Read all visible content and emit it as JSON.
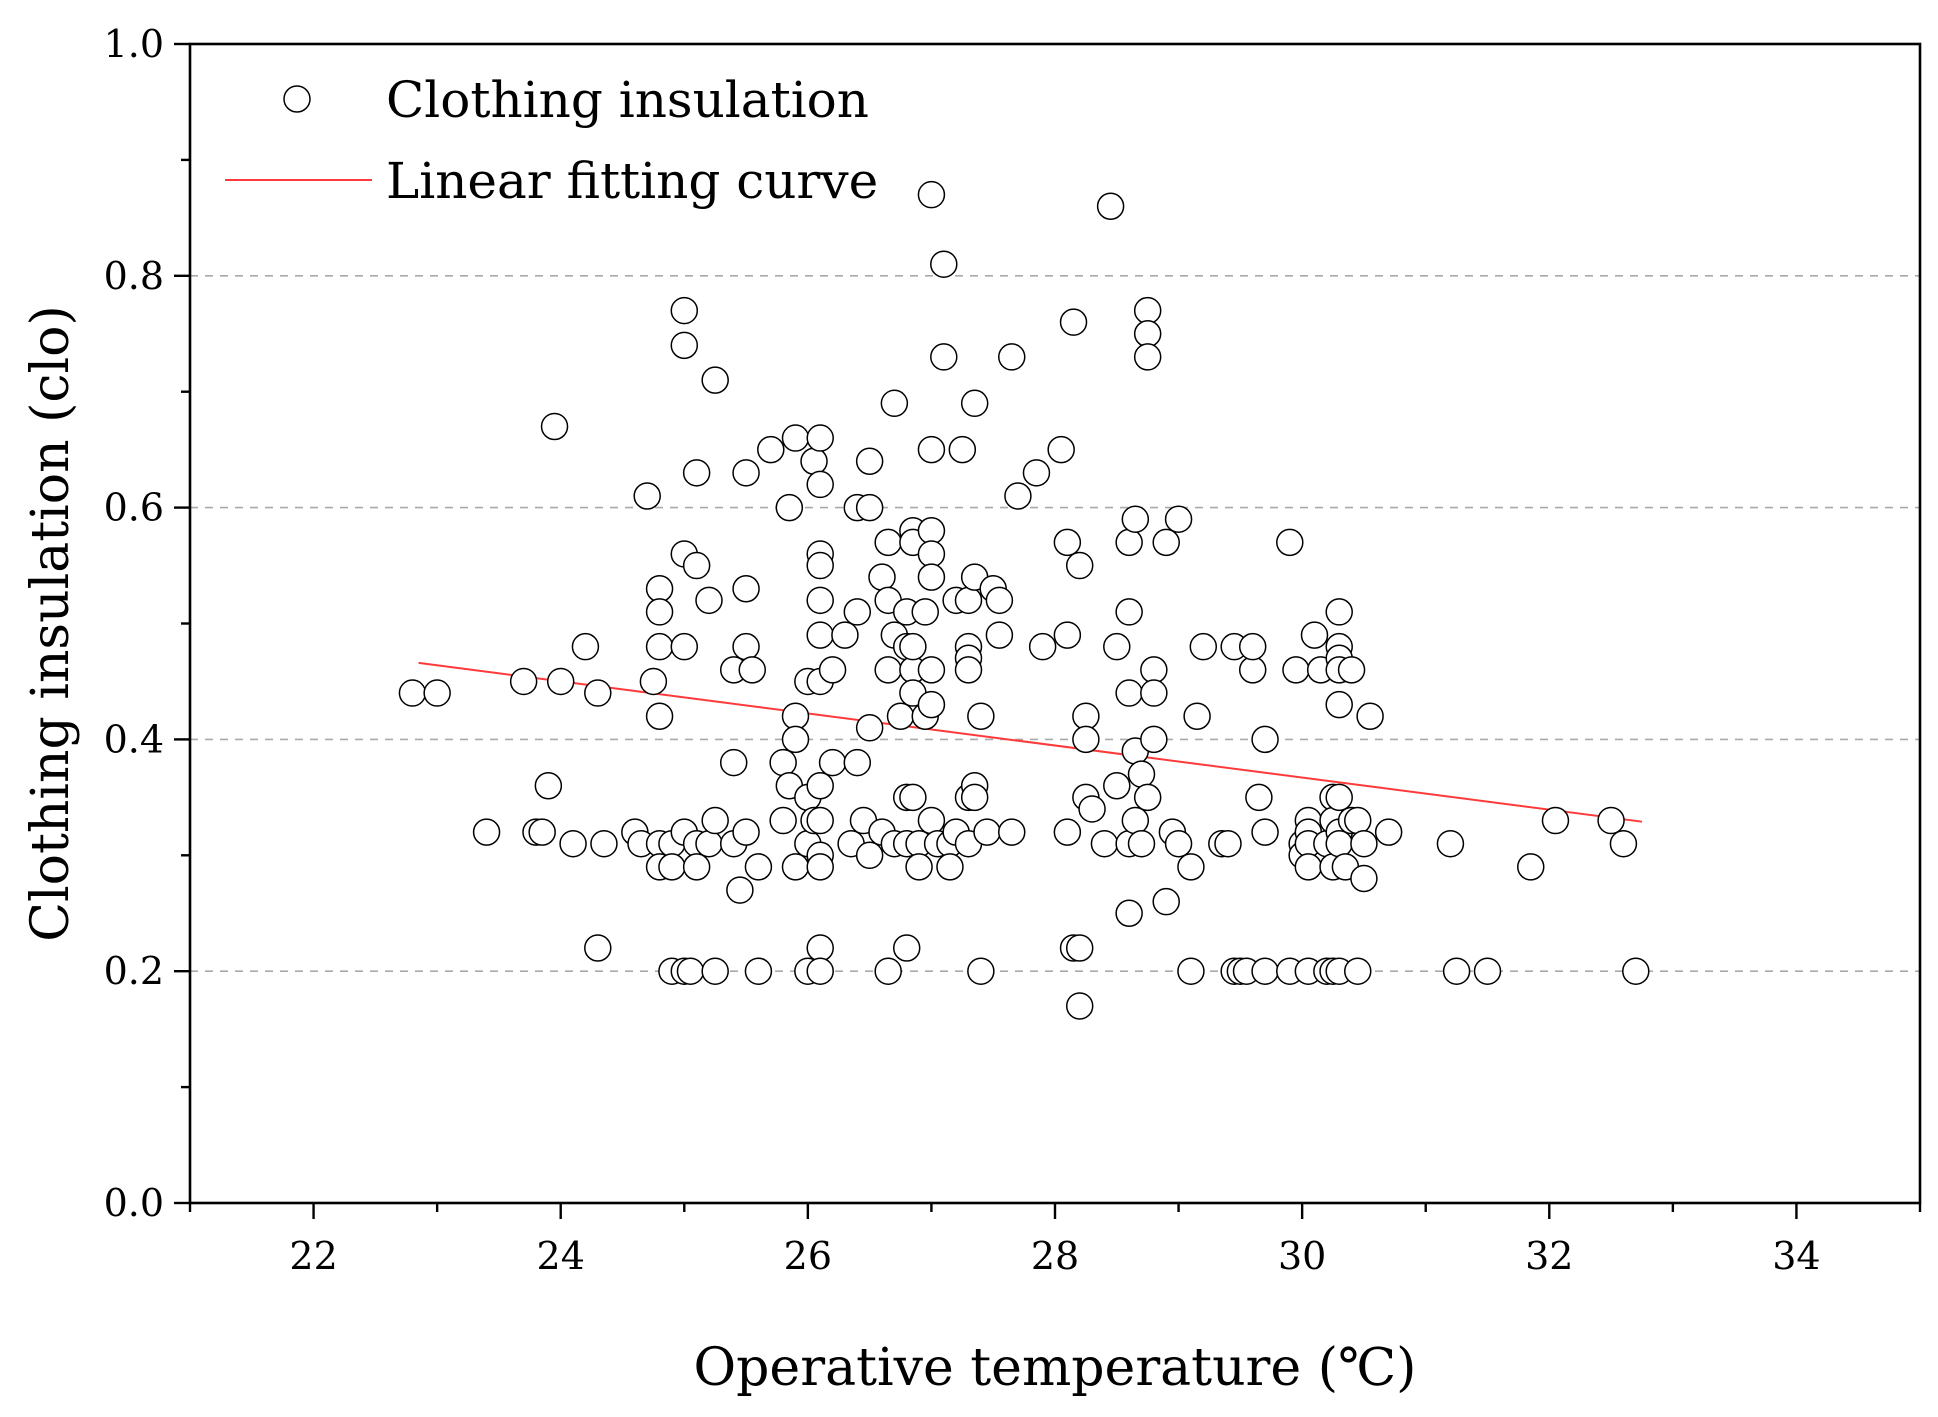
{
  "chart_data": {
    "type": "scatter",
    "xlabel": "Operative temperature (℃)",
    "ylabel": "Clothing insulation (clo)",
    "xlim": [
      21,
      35
    ],
    "ylim": [
      0.0,
      1.0
    ],
    "x_ticks": [
      22,
      24,
      26,
      28,
      30,
      32,
      34
    ],
    "y_ticks": [
      0.0,
      0.2,
      0.4,
      0.6,
      0.8,
      1.0
    ],
    "y_tick_labels": [
      "0.0",
      "0.2",
      "0.4",
      "0.6",
      "0.8",
      "1.0"
    ],
    "y_gridlines": [
      0.2,
      0.4,
      0.6,
      0.8
    ],
    "legend": {
      "position": "top-left",
      "entries": [
        "Clothing insulation",
        "Linear fitting curve"
      ]
    },
    "colors": {
      "points_edge": "#000000",
      "points_fill": "#ffffff",
      "fit_line": "#ff3a3a",
      "grid": "#aaaaaa"
    },
    "series": [
      {
        "name": "Clothing insulation",
        "kind": "scatter",
        "points": [
          [
            22.8,
            0.44
          ],
          [
            23.0,
            0.44
          ],
          [
            23.4,
            0.32
          ],
          [
            23.7,
            0.45
          ],
          [
            23.8,
            0.32
          ],
          [
            23.85,
            0.32
          ],
          [
            23.9,
            0.36
          ],
          [
            23.95,
            0.67
          ],
          [
            24.0,
            0.45
          ],
          [
            24.1,
            0.31
          ],
          [
            24.2,
            0.48
          ],
          [
            24.3,
            0.44
          ],
          [
            24.3,
            0.22
          ],
          [
            24.35,
            0.31
          ],
          [
            24.6,
            0.32
          ],
          [
            24.65,
            0.31
          ],
          [
            24.7,
            0.61
          ],
          [
            24.75,
            0.45
          ],
          [
            24.8,
            0.53
          ],
          [
            24.8,
            0.51
          ],
          [
            24.8,
            0.48
          ],
          [
            24.8,
            0.42
          ],
          [
            24.8,
            0.31
          ],
          [
            24.8,
            0.29
          ],
          [
            24.9,
            0.31
          ],
          [
            24.9,
            0.29
          ],
          [
            24.9,
            0.2
          ],
          [
            25.0,
            0.77
          ],
          [
            25.0,
            0.74
          ],
          [
            25.0,
            0.56
          ],
          [
            25.0,
            0.48
          ],
          [
            25.0,
            0.32
          ],
          [
            25.0,
            0.2
          ],
          [
            25.05,
            0.2
          ],
          [
            25.1,
            0.63
          ],
          [
            25.1,
            0.55
          ],
          [
            25.1,
            0.31
          ],
          [
            25.1,
            0.29
          ],
          [
            25.2,
            0.31
          ],
          [
            25.2,
            0.52
          ],
          [
            25.25,
            0.71
          ],
          [
            25.25,
            0.33
          ],
          [
            25.25,
            0.2
          ],
          [
            25.4,
            0.46
          ],
          [
            25.4,
            0.38
          ],
          [
            25.4,
            0.31
          ],
          [
            25.45,
            0.27
          ],
          [
            25.5,
            0.63
          ],
          [
            25.5,
            0.53
          ],
          [
            25.5,
            0.48
          ],
          [
            25.5,
            0.32
          ],
          [
            25.55,
            0.46
          ],
          [
            25.6,
            0.29
          ],
          [
            25.6,
            0.2
          ],
          [
            25.7,
            0.65
          ],
          [
            25.8,
            0.38
          ],
          [
            25.8,
            0.33
          ],
          [
            25.85,
            0.6
          ],
          [
            25.85,
            0.36
          ],
          [
            25.9,
            0.42
          ],
          [
            25.9,
            0.66
          ],
          [
            25.9,
            0.4
          ],
          [
            25.9,
            0.29
          ],
          [
            26.0,
            0.45
          ],
          [
            26.0,
            0.35
          ],
          [
            26.0,
            0.31
          ],
          [
            26.0,
            0.2
          ],
          [
            26.05,
            0.64
          ],
          [
            26.05,
            0.33
          ],
          [
            26.1,
            0.66
          ],
          [
            26.1,
            0.62
          ],
          [
            26.1,
            0.56
          ],
          [
            26.1,
            0.55
          ],
          [
            26.1,
            0.52
          ],
          [
            26.1,
            0.49
          ],
          [
            26.1,
            0.45
          ],
          [
            26.1,
            0.36
          ],
          [
            26.1,
            0.33
          ],
          [
            26.1,
            0.3
          ],
          [
            26.1,
            0.29
          ],
          [
            26.1,
            0.22
          ],
          [
            26.1,
            0.2
          ],
          [
            26.2,
            0.46
          ],
          [
            26.2,
            0.38
          ],
          [
            26.3,
            0.49
          ],
          [
            26.35,
            0.31
          ],
          [
            26.4,
            0.6
          ],
          [
            26.4,
            0.38
          ],
          [
            26.4,
            0.51
          ],
          [
            26.45,
            0.33
          ],
          [
            26.5,
            0.64
          ],
          [
            26.5,
            0.6
          ],
          [
            26.5,
            0.41
          ],
          [
            26.5,
            0.3
          ],
          [
            26.6,
            0.54
          ],
          [
            26.6,
            0.32
          ],
          [
            26.65,
            0.57
          ],
          [
            26.65,
            0.52
          ],
          [
            26.65,
            0.46
          ],
          [
            26.65,
            0.2
          ],
          [
            26.7,
            0.31
          ],
          [
            26.7,
            0.69
          ],
          [
            26.7,
            0.49
          ],
          [
            26.75,
            0.42
          ],
          [
            26.8,
            0.51
          ],
          [
            26.8,
            0.48
          ],
          [
            26.8,
            0.35
          ],
          [
            26.8,
            0.31
          ],
          [
            26.8,
            0.22
          ],
          [
            26.85,
            0.58
          ],
          [
            26.85,
            0.57
          ],
          [
            26.85,
            0.46
          ],
          [
            26.85,
            0.44
          ],
          [
            26.85,
            0.48
          ],
          [
            26.85,
            0.35
          ],
          [
            26.9,
            0.31
          ],
          [
            26.9,
            0.29
          ],
          [
            26.95,
            0.51
          ],
          [
            26.95,
            0.42
          ],
          [
            27.0,
            0.87
          ],
          [
            27.0,
            0.65
          ],
          [
            27.0,
            0.58
          ],
          [
            27.0,
            0.56
          ],
          [
            27.0,
            0.54
          ],
          [
            27.0,
            0.46
          ],
          [
            27.0,
            0.43
          ],
          [
            27.0,
            0.33
          ],
          [
            27.05,
            0.31
          ],
          [
            27.1,
            0.81
          ],
          [
            27.1,
            0.73
          ],
          [
            27.15,
            0.31
          ],
          [
            27.15,
            0.29
          ],
          [
            27.2,
            0.52
          ],
          [
            27.2,
            0.32
          ],
          [
            27.25,
            0.65
          ],
          [
            27.3,
            0.48
          ],
          [
            27.3,
            0.47
          ],
          [
            27.3,
            0.52
          ],
          [
            27.3,
            0.46
          ],
          [
            27.3,
            0.35
          ],
          [
            27.3,
            0.31
          ],
          [
            27.35,
            0.69
          ],
          [
            27.35,
            0.54
          ],
          [
            27.35,
            0.36
          ],
          [
            27.35,
            0.35
          ],
          [
            27.4,
            0.42
          ],
          [
            27.4,
            0.2
          ],
          [
            27.45,
            0.32
          ],
          [
            27.5,
            0.53
          ],
          [
            27.55,
            0.52
          ],
          [
            27.55,
            0.49
          ],
          [
            27.65,
            0.73
          ],
          [
            27.65,
            0.32
          ],
          [
            27.7,
            0.61
          ],
          [
            27.85,
            0.63
          ],
          [
            27.9,
            0.48
          ],
          [
            28.05,
            0.65
          ],
          [
            28.1,
            0.57
          ],
          [
            28.1,
            0.49
          ],
          [
            28.1,
            0.32
          ],
          [
            28.15,
            0.76
          ],
          [
            28.15,
            0.22
          ],
          [
            28.2,
            0.55
          ],
          [
            28.2,
            0.22
          ],
          [
            28.2,
            0.17
          ],
          [
            28.25,
            0.42
          ],
          [
            28.25,
            0.35
          ],
          [
            28.25,
            0.4
          ],
          [
            28.3,
            0.34
          ],
          [
            28.4,
            0.31
          ],
          [
            28.45,
            0.86
          ],
          [
            28.5,
            0.48
          ],
          [
            28.5,
            0.36
          ],
          [
            28.6,
            0.57
          ],
          [
            28.6,
            0.51
          ],
          [
            28.6,
            0.44
          ],
          [
            28.6,
            0.31
          ],
          [
            28.6,
            0.25
          ],
          [
            28.65,
            0.59
          ],
          [
            28.65,
            0.39
          ],
          [
            28.65,
            0.33
          ],
          [
            28.7,
            0.37
          ],
          [
            28.7,
            0.31
          ],
          [
            28.75,
            0.77
          ],
          [
            28.75,
            0.75
          ],
          [
            28.75,
            0.73
          ],
          [
            28.75,
            0.35
          ],
          [
            28.8,
            0.46
          ],
          [
            28.8,
            0.44
          ],
          [
            28.8,
            0.4
          ],
          [
            28.9,
            0.26
          ],
          [
            28.9,
            0.57
          ],
          [
            28.95,
            0.32
          ],
          [
            29.0,
            0.59
          ],
          [
            29.0,
            0.31
          ],
          [
            29.1,
            0.29
          ],
          [
            29.1,
            0.2
          ],
          [
            29.15,
            0.42
          ],
          [
            29.2,
            0.48
          ],
          [
            29.35,
            0.31
          ],
          [
            29.4,
            0.31
          ],
          [
            29.45,
            0.48
          ],
          [
            29.45,
            0.2
          ],
          [
            29.5,
            0.2
          ],
          [
            29.55,
            0.2
          ],
          [
            29.6,
            0.46
          ],
          [
            29.6,
            0.48
          ],
          [
            29.65,
            0.35
          ],
          [
            29.7,
            0.4
          ],
          [
            29.7,
            0.32
          ],
          [
            29.7,
            0.2
          ],
          [
            29.9,
            0.57
          ],
          [
            29.9,
            0.2
          ],
          [
            29.95,
            0.46
          ],
          [
            30.0,
            0.31
          ],
          [
            30.0,
            0.3
          ],
          [
            30.05,
            0.33
          ],
          [
            30.05,
            0.32
          ],
          [
            30.05,
            0.31
          ],
          [
            30.05,
            0.29
          ],
          [
            30.05,
            0.2
          ],
          [
            30.1,
            0.49
          ],
          [
            30.15,
            0.46
          ],
          [
            30.2,
            0.31
          ],
          [
            30.2,
            0.2
          ],
          [
            30.25,
            0.35
          ],
          [
            30.25,
            0.33
          ],
          [
            30.25,
            0.29
          ],
          [
            30.25,
            0.2
          ],
          [
            30.3,
            0.51
          ],
          [
            30.3,
            0.48
          ],
          [
            30.3,
            0.47
          ],
          [
            30.3,
            0.46
          ],
          [
            30.3,
            0.43
          ],
          [
            30.3,
            0.35
          ],
          [
            30.3,
            0.32
          ],
          [
            30.3,
            0.31
          ],
          [
            30.3,
            0.2
          ],
          [
            30.35,
            0.29
          ],
          [
            30.4,
            0.46
          ],
          [
            30.4,
            0.33
          ],
          [
            30.45,
            0.33
          ],
          [
            30.45,
            0.2
          ],
          [
            30.5,
            0.31
          ],
          [
            30.5,
            0.28
          ],
          [
            30.55,
            0.42
          ],
          [
            30.7,
            0.32
          ],
          [
            31.2,
            0.31
          ],
          [
            31.25,
            0.2
          ],
          [
            31.5,
            0.2
          ],
          [
            31.85,
            0.29
          ],
          [
            32.05,
            0.33
          ],
          [
            32.5,
            0.33
          ],
          [
            32.6,
            0.31
          ],
          [
            32.7,
            0.2
          ]
        ]
      },
      {
        "name": "Linear fitting curve",
        "kind": "line",
        "x": [
          22.85,
          32.75
        ],
        "y": [
          0.466,
          0.329
        ]
      }
    ]
  }
}
